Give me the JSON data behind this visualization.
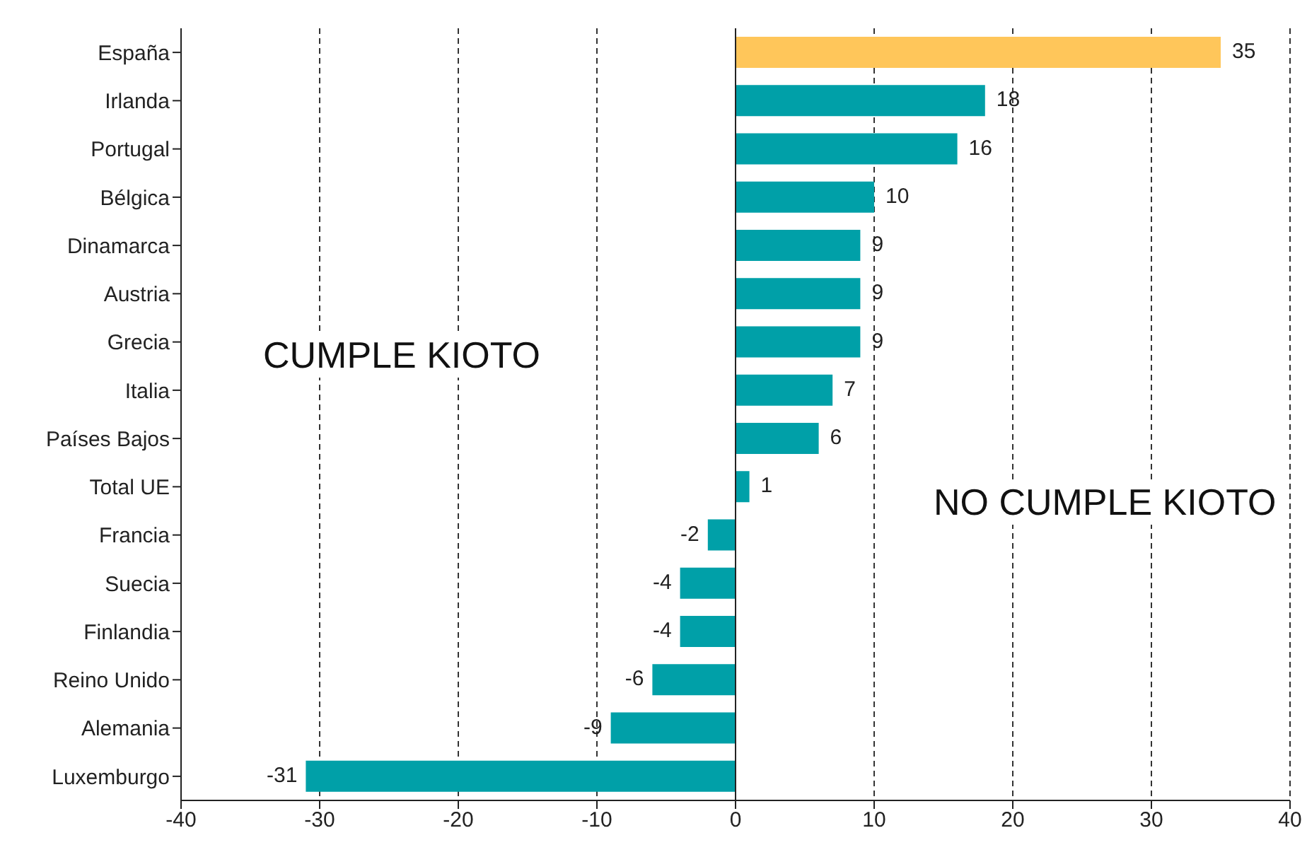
{
  "chart_data": {
    "type": "bar",
    "orientation": "horizontal",
    "categories": [
      "España",
      "Irlanda",
      "Portugal",
      "Bélgica",
      "Dinamarca",
      "Austria",
      "Grecia",
      "Italia",
      "Países Bajos",
      "Total UE",
      "Francia",
      "Suecia",
      "Finlandia",
      "Reino Unido",
      "Alemania",
      "Luxemburgo"
    ],
    "values": [
      35,
      18,
      16,
      10,
      9,
      9,
      9,
      7,
      6,
      1,
      -2,
      -4,
      -4,
      -6,
      -9,
      -31
    ],
    "colors": [
      "#ffc65a",
      "#00a0a8",
      "#00a0a8",
      "#00a0a8",
      "#00a0a8",
      "#00a0a8",
      "#00a0a8",
      "#00a0a8",
      "#00a0a8",
      "#00a0a8",
      "#00a0a8",
      "#00a0a8",
      "#00a0a8",
      "#00a0a8",
      "#00a0a8",
      "#00a0a8"
    ],
    "xlim": [
      -40,
      40
    ],
    "xticks": [
      -40,
      -30,
      -20,
      -10,
      0,
      10,
      20,
      30,
      40
    ],
    "grid": "x",
    "data_labels": true,
    "annotations": [
      "CUMPLE KIOTO",
      "NO CUMPLE KIOTO"
    ]
  }
}
